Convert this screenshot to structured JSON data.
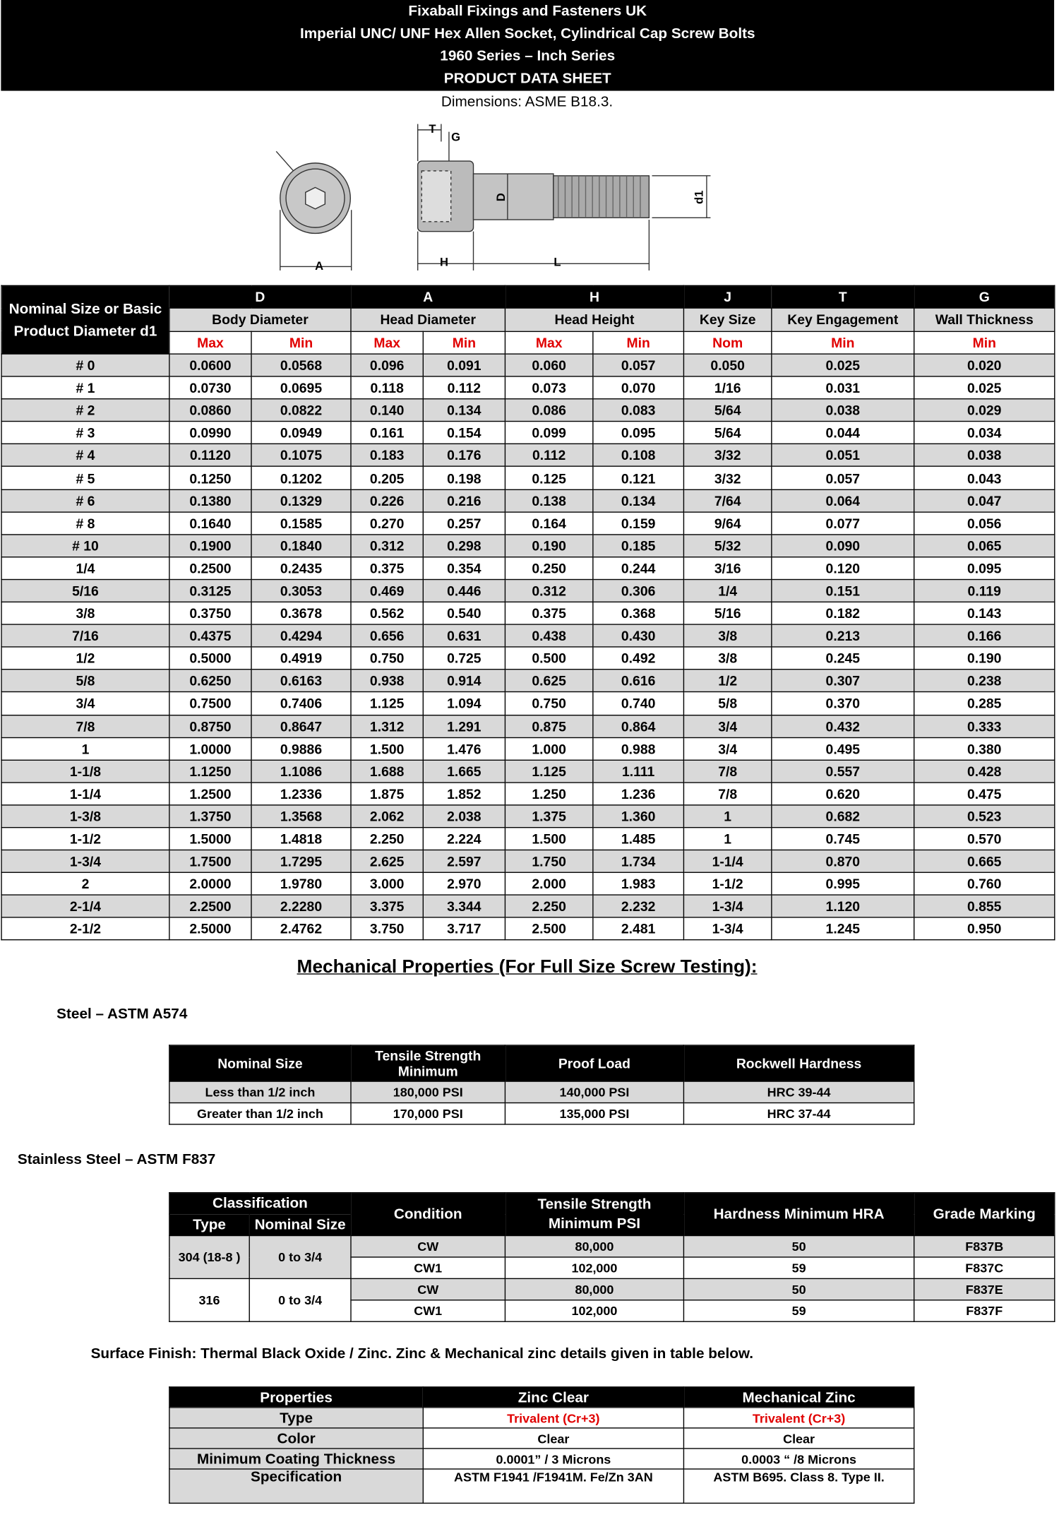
{
  "header": {
    "lines": [
      "Fixaball Fixings and Fasteners UK",
      "Imperial UNC/ UNF Hex Allen Socket, Cylindrical Cap Screw Bolts",
      "1960 Series – Inch Series",
      "PRODUCT DATA SHEET"
    ],
    "subtitle": "Dimensions: ASME B18.3."
  },
  "diagram": {
    "labels": [
      "T",
      "G",
      "D",
      "d1",
      "A",
      "H",
      "L"
    ]
  },
  "dimensions_table": {
    "size_header": "Nominal Size or Basic Product Diameter d1",
    "groups": [
      {
        "symbol": "D",
        "name": "Body Diameter",
        "columns": [
          "Max",
          "Min"
        ]
      },
      {
        "symbol": "A",
        "name": "Head Diameter",
        "columns": [
          "Max",
          "Min"
        ]
      },
      {
        "symbol": "H",
        "name": "Head Height",
        "columns": [
          "Max",
          "Min"
        ]
      },
      {
        "symbol": "J",
        "name": "Key Size",
        "columns": [
          "Nom"
        ]
      },
      {
        "symbol": "T",
        "name": "Key Engagement",
        "columns": [
          "Min"
        ]
      },
      {
        "symbol": "G",
        "name": "Wall Thickness",
        "columns": [
          "Min"
        ]
      }
    ],
    "rows": [
      [
        "# 0",
        "0.0600",
        "0.0568",
        "0.096",
        "0.091",
        "0.060",
        "0.057",
        "0.050",
        "0.025",
        "0.020"
      ],
      [
        "# 1",
        "0.0730",
        "0.0695",
        "0.118",
        "0.112",
        "0.073",
        "0.070",
        "1/16",
        "0.031",
        "0.025"
      ],
      [
        "# 2",
        "0.0860",
        "0.0822",
        "0.140",
        "0.134",
        "0.086",
        "0.083",
        "5/64",
        "0.038",
        "0.029"
      ],
      [
        "# 3",
        "0.0990",
        "0.0949",
        "0.161",
        "0.154",
        "0.099",
        "0.095",
        "5/64",
        "0.044",
        "0.034"
      ],
      [
        "# 4",
        "0.1120",
        "0.1075",
        "0.183",
        "0.176",
        "0.112",
        "0.108",
        "3/32",
        "0.051",
        "0.038"
      ],
      [
        "# 5",
        "0.1250",
        "0.1202",
        "0.205",
        "0.198",
        "0.125",
        "0.121",
        "3/32",
        "0.057",
        "0.043"
      ],
      [
        "# 6",
        "0.1380",
        "0.1329",
        "0.226",
        "0.216",
        "0.138",
        "0.134",
        "7/64",
        "0.064",
        "0.047"
      ],
      [
        "# 8",
        "0.1640",
        "0.1585",
        "0.270",
        "0.257",
        "0.164",
        "0.159",
        "9/64",
        "0.077",
        "0.056"
      ],
      [
        "# 10",
        "0.1900",
        "0.1840",
        "0.312",
        "0.298",
        "0.190",
        "0.185",
        "5/32",
        "0.090",
        "0.065"
      ],
      [
        "1/4",
        "0.2500",
        "0.2435",
        "0.375",
        "0.354",
        "0.250",
        "0.244",
        "3/16",
        "0.120",
        "0.095"
      ],
      [
        "5/16",
        "0.3125",
        "0.3053",
        "0.469",
        "0.446",
        "0.312",
        "0.306",
        "1/4",
        "0.151",
        "0.119"
      ],
      [
        "3/8",
        "0.3750",
        "0.3678",
        "0.562",
        "0.540",
        "0.375",
        "0.368",
        "5/16",
        "0.182",
        "0.143"
      ],
      [
        "7/16",
        "0.4375",
        "0.4294",
        "0.656",
        "0.631",
        "0.438",
        "0.430",
        "3/8",
        "0.213",
        "0.166"
      ],
      [
        "1/2",
        "0.5000",
        "0.4919",
        "0.750",
        "0.725",
        "0.500",
        "0.492",
        "3/8",
        "0.245",
        "0.190"
      ],
      [
        "5/8",
        "0.6250",
        "0.6163",
        "0.938",
        "0.914",
        "0.625",
        "0.616",
        "1/2",
        "0.307",
        "0.238"
      ],
      [
        "3/4",
        "0.7500",
        "0.7406",
        "1.125",
        "1.094",
        "0.750",
        "0.740",
        "5/8",
        "0.370",
        "0.285"
      ],
      [
        "7/8",
        "0.8750",
        "0.8647",
        "1.312",
        "1.291",
        "0.875",
        "0.864",
        "3/4",
        "0.432",
        "0.333"
      ],
      [
        "1",
        "1.0000",
        "0.9886",
        "1.500",
        "1.476",
        "1.000",
        "0.988",
        "3/4",
        "0.495",
        "0.380"
      ],
      [
        "1-1/8",
        "1.1250",
        "1.1086",
        "1.688",
        "1.665",
        "1.125",
        "1.111",
        "7/8",
        "0.557",
        "0.428"
      ],
      [
        "1-1/4",
        "1.2500",
        "1.2336",
        "1.875",
        "1.852",
        "1.250",
        "1.236",
        "7/8",
        "0.620",
        "0.475"
      ],
      [
        "1-3/8",
        "1.3750",
        "1.3568",
        "2.062",
        "2.038",
        "1.375",
        "1.360",
        "1",
        "0.682",
        "0.523"
      ],
      [
        "1-1/2",
        "1.5000",
        "1.4818",
        "2.250",
        "2.224",
        "1.500",
        "1.485",
        "1",
        "0.745",
        "0.570"
      ],
      [
        "1-3/4",
        "1.7500",
        "1.7295",
        "2.625",
        "2.597",
        "1.750",
        "1.734",
        "1-1/4",
        "0.870",
        "0.665"
      ],
      [
        "2",
        "2.0000",
        "1.9780",
        "3.000",
        "2.970",
        "2.000",
        "1.983",
        "1-1/2",
        "0.995",
        "0.760"
      ],
      [
        "2-1/4",
        "2.2500",
        "2.2280",
        "3.375",
        "3.344",
        "2.250",
        "2.232",
        "1-3/4",
        "1.120",
        "0.855"
      ],
      [
        "2-1/2",
        "2.5000",
        "2.4762",
        "3.750",
        "3.717",
        "2.500",
        "2.481",
        "1-3/4",
        "1.245",
        "0.950"
      ]
    ]
  },
  "mechanical": {
    "title": "Mechanical Properties (For Full Size Screw Testing):",
    "steel": {
      "heading": "Steel – ASTM A574",
      "header": [
        "Nominal Size",
        "Tensile Strength Minimum",
        "Proof Load",
        "Rockwell Hardness"
      ],
      "rows": [
        [
          "Less than 1/2 inch",
          "180,000 PSI",
          "140,000 PSI",
          "HRC 39-44"
        ],
        [
          "Greater than 1/2 inch",
          "170,000 PSI",
          "135,000 PSI",
          "HRC 37-44"
        ]
      ]
    },
    "stainless": {
      "heading": "Stainless Steel – ASTM F837",
      "classification": "Classification",
      "header": [
        "Type",
        "Nominal Size",
        "Condition",
        "Tensile Strength Minimum PSI",
        "Hardness Minimum HRA",
        "Grade Marking"
      ],
      "groups": [
        {
          "type": "304 (18-8 )",
          "size": "0  to 3/4",
          "rows": [
            [
              "CW",
              "80,000",
              "50",
              "F837B"
            ],
            [
              "CW1",
              "102,000",
              "59",
              "F837C"
            ]
          ]
        },
        {
          "type": "316",
          "size": "0 to 3/4",
          "rows": [
            [
              "CW",
              "80,000",
              "50",
              "F837E"
            ],
            [
              "CW1",
              "102,000",
              "59",
              "F837F"
            ]
          ]
        }
      ]
    }
  },
  "surface": {
    "heading": "Surface Finish: Thermal Black Oxide / Zinc. Zinc & Mechanical zinc details given in table below.",
    "header": [
      "Properties",
      "Zinc Clear",
      "Mechanical Zinc"
    ],
    "rows": [
      [
        "Type",
        "Trivalent (Cr+3)",
        "Trivalent (Cr+3)"
      ],
      [
        "Color",
        "Clear",
        "Clear"
      ],
      [
        "Minimum Coating Thickness",
        "0.0001” / 3 Microns",
        "0.0003 “ /8 Microns"
      ],
      [
        "Specification",
        "ASTM F1941 /F1941M. Fe/Zn 3AN",
        "ASTM B695. Class 8. Type II."
      ]
    ]
  }
}
